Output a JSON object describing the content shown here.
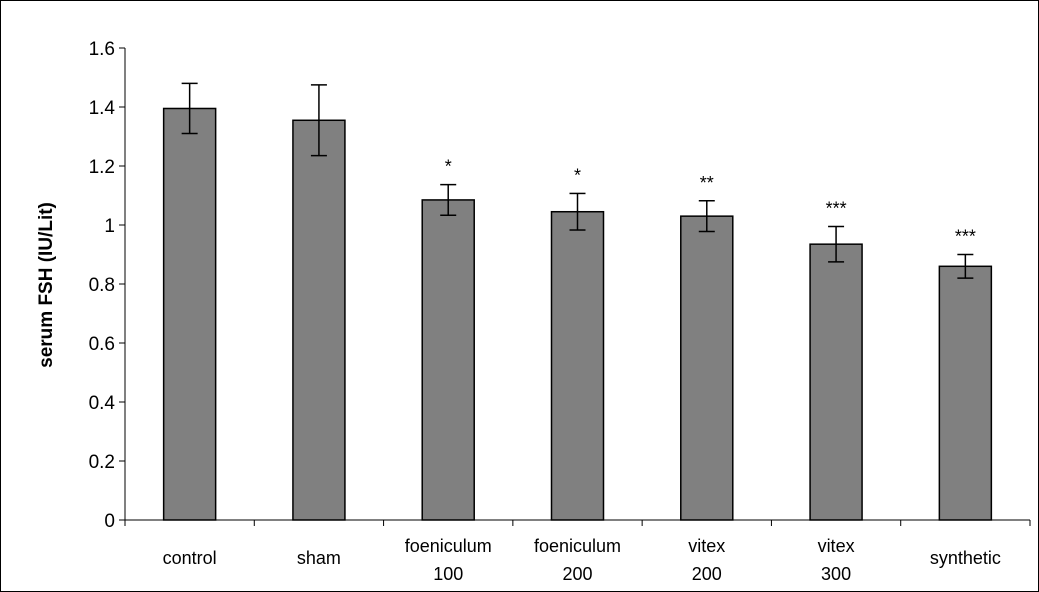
{
  "chart_data": {
    "type": "bar",
    "ylabel": "serum FSH (IU/Lit)",
    "xlabel": "",
    "title": "",
    "ylim": [
      0,
      1.6
    ],
    "yticks": [
      "0",
      "0.2",
      "0.4",
      "0.6",
      "0.8",
      "1",
      "1.2",
      "1.4",
      "1.6"
    ],
    "categories": [
      [
        "control"
      ],
      [
        "sham"
      ],
      [
        "foeniculum",
        "100"
      ],
      [
        "foeniculum",
        "200"
      ],
      [
        "vitex",
        "200"
      ],
      [
        "vitex",
        "300"
      ],
      [
        "synthetic"
      ]
    ],
    "values": [
      1.395,
      1.355,
      1.085,
      1.045,
      1.03,
      0.935,
      0.86
    ],
    "errors": [
      0.085,
      0.12,
      0.052,
      0.062,
      0.052,
      0.06,
      0.04
    ],
    "significance": [
      "",
      "",
      "*",
      "*",
      "**",
      "***",
      "***"
    ],
    "grid": false,
    "legend": "none",
    "colors": {
      "bar": "#808080",
      "bar_stroke": "#000000",
      "frame": "#000000"
    }
  }
}
